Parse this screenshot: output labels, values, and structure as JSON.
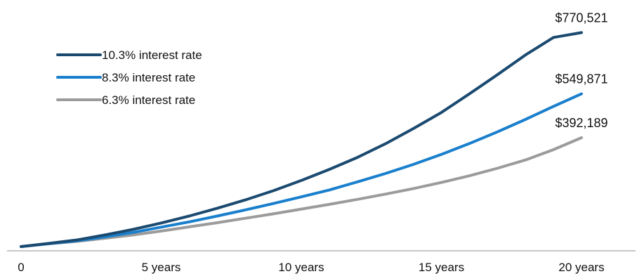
{
  "chart_data": {
    "type": "line",
    "title": "",
    "xlabel": "",
    "ylabel": "",
    "x": [
      0,
      1,
      2,
      3,
      4,
      5,
      6,
      7,
      8,
      9,
      10,
      11,
      12,
      13,
      14,
      15,
      16,
      17,
      18,
      19,
      20
    ],
    "xlim": [
      0,
      20
    ],
    "ylim": [
      0,
      850000
    ],
    "x_tick_labels": [
      {
        "x": 0,
        "label": "0"
      },
      {
        "x": 5,
        "label": "5 years"
      },
      {
        "x": 10,
        "label": "10 years"
      },
      {
        "x": 15,
        "label": "15 years"
      },
      {
        "x": 20,
        "label": "20 years"
      }
    ],
    "grid": false,
    "legend_position": "top-left",
    "series": [
      {
        "name": "10.3% interest rate",
        "color": "#1b4a70",
        "values": [
          0,
          12000,
          24000,
          42000,
          62000,
          85000,
          110000,
          138000,
          168000,
          201000,
          238000,
          278000,
          321000,
          370000,
          425000,
          483000,
          550000,
          619000,
          690000,
          753000,
          770521
        ],
        "end_label": "$770,521"
      },
      {
        "name": "8.3% interest rate",
        "color": "#1a7fcc",
        "values": [
          0,
          11000,
          21000,
          35000,
          51000,
          70000,
          89000,
          110000,
          132000,
          155000,
          179000,
          204000,
          233000,
          263000,
          296000,
          332000,
          371000,
          413000,
          458000,
          505000,
          549871
        ],
        "end_label": "$549,871"
      },
      {
        "name": "6.3% interest rate",
        "color": "#9b9b9b",
        "values": [
          0,
          10000,
          19000,
          30000,
          42000,
          56000,
          71000,
          86000,
          102000,
          118000,
          135000,
          152000,
          170000,
          189000,
          209000,
          231000,
          255000,
          282000,
          312000,
          349000,
          392189
        ],
        "end_label": "$392,189"
      }
    ]
  }
}
